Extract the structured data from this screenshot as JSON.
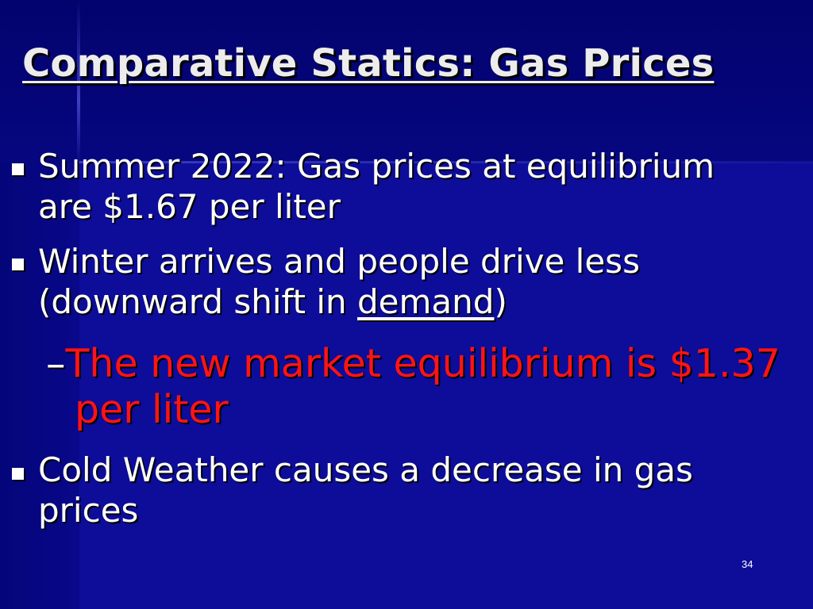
{
  "slide": {
    "title": "Comparative Statics: Gas Prices",
    "bullet1": {
      "line1": "Summer 2022: Gas prices at equilibrium",
      "line2": "are $1.67 per liter"
    },
    "bullet2": {
      "line1": "Winter arrives and people drive less",
      "line2_prefix": "(downward shift in ",
      "line2_link": "demand",
      "line2_suffix": ")"
    },
    "sub1": {
      "dash": "–",
      "line1": "The new market equilibrium is $1.37",
      "line2": "per liter"
    },
    "bullet3": {
      "line1": "Cold Weather causes a decrease in gas",
      "line2": "prices"
    },
    "page_number": "34"
  },
  "colors": {
    "background": "#0a0a8c",
    "text": "#ffffff",
    "highlight": "#ff1414"
  }
}
